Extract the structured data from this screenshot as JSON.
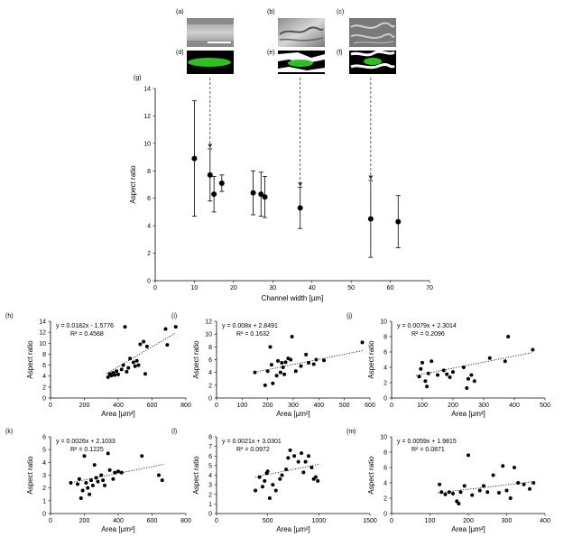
{
  "images": {
    "labels": [
      "(a)",
      "(b)",
      "(c)",
      "(d)",
      "(e)",
      "(f)"
    ]
  },
  "chart_data": [
    {
      "id": "g",
      "type": "scatter",
      "panel_label": "(g)",
      "title": "",
      "xlabel": "Channel width [µm]",
      "ylabel": "Aspect ratio",
      "xlim": [
        0,
        70
      ],
      "ylim": [
        0,
        14
      ],
      "xticks": [
        "0",
        "10",
        "20",
        "30",
        "40",
        "50",
        "60",
        "70"
      ],
      "yticks": [
        "0",
        "2",
        "4",
        "6",
        "8",
        "10",
        "12",
        "14"
      ],
      "points": [
        {
          "x": 10,
          "y": 8.9,
          "err": 4.2
        },
        {
          "x": 14,
          "y": 7.7,
          "err": 1.9
        },
        {
          "x": 15,
          "y": 6.3,
          "err": 1.3
        },
        {
          "x": 17,
          "y": 7.1,
          "err": 0.6
        },
        {
          "x": 25,
          "y": 6.4,
          "err": 1.6
        },
        {
          "x": 27,
          "y": 6.3,
          "err": 1.6
        },
        {
          "x": 28,
          "y": 6.1,
          "err": 1.5
        },
        {
          "x": 37,
          "y": 5.3,
          "err": 1.5
        },
        {
          "x": 55,
          "y": 4.5,
          "err": 2.8
        },
        {
          "x": 62,
          "y": 4.3,
          "err": 1.9
        }
      ],
      "arrows_x": [
        14,
        37,
        55
      ]
    },
    {
      "id": "h",
      "type": "scatter",
      "panel_label": "(h)",
      "xlabel": "Area [µm²]",
      "ylabel": "Aspect ratio",
      "xlim": [
        0,
        800
      ],
      "ylim": [
        0,
        14
      ],
      "xticks": [
        "0",
        "200",
        "400",
        "600",
        "800"
      ],
      "yticks": [
        "0",
        "2",
        "4",
        "6",
        "8",
        "10",
        "12",
        "14"
      ],
      "equation": "y = 0.0182x - 1.5776",
      "r2": "R² = 0.4568",
      "trend": {
        "slope": 0.0182,
        "intercept": -1.5776,
        "x0": 330,
        "x1": 740
      },
      "points": [
        [
          340,
          3.8
        ],
        [
          350,
          4.4
        ],
        [
          360,
          4.1
        ],
        [
          370,
          4.6
        ],
        [
          380,
          4.2
        ],
        [
          390,
          4.9
        ],
        [
          400,
          4.3
        ],
        [
          420,
          5.2
        ],
        [
          430,
          6.0
        ],
        [
          440,
          13.0
        ],
        [
          450,
          4.8
        ],
        [
          460,
          5.5
        ],
        [
          470,
          7.2
        ],
        [
          490,
          6.5
        ],
        [
          500,
          5.8
        ],
        [
          510,
          6.8
        ],
        [
          520,
          6.0
        ],
        [
          530,
          9.8
        ],
        [
          550,
          10.3
        ],
        [
          560,
          4.4
        ],
        [
          570,
          9.4
        ],
        [
          680,
          12.6
        ],
        [
          690,
          9.7
        ],
        [
          740,
          13.0
        ]
      ]
    },
    {
      "id": "i",
      "type": "scatter",
      "panel_label": "(i)",
      "xlabel": "Area [µm²]",
      "ylabel": "Aspect ratio",
      "xlim": [
        0,
        600
      ],
      "ylim": [
        0,
        12
      ],
      "xticks": [
        "0",
        "100",
        "200",
        "300",
        "400",
        "500",
        "600"
      ],
      "yticks": [
        "0",
        "2",
        "4",
        "6",
        "8",
        "10",
        "12"
      ],
      "equation": "y = 0.008x + 2.8491",
      "r2": "R² = 0.1632",
      "trend": {
        "slope": 0.008,
        "intercept": 2.8491,
        "x0": 150,
        "x1": 575
      },
      "points": [
        [
          150,
          4.0
        ],
        [
          190,
          2.0
        ],
        [
          200,
          4.2
        ],
        [
          210,
          8.0
        ],
        [
          215,
          5.2
        ],
        [
          220,
          2.3
        ],
        [
          235,
          3.5
        ],
        [
          240,
          5.8
        ],
        [
          250,
          4.0
        ],
        [
          255,
          5.5
        ],
        [
          260,
          4.8
        ],
        [
          265,
          3.7
        ],
        [
          270,
          5.6
        ],
        [
          280,
          6.2
        ],
        [
          290,
          6.0
        ],
        [
          295,
          9.6
        ],
        [
          310,
          4.2
        ],
        [
          330,
          5.0
        ],
        [
          350,
          6.8
        ],
        [
          360,
          5.5
        ],
        [
          380,
          5.3
        ],
        [
          390,
          6.0
        ],
        [
          420,
          5.9
        ],
        [
          570,
          8.7
        ]
      ]
    },
    {
      "id": "j",
      "type": "scatter",
      "panel_label": "(j)",
      "xlabel": "Area [µm²]",
      "ylabel": "Aspect ratio",
      "xlim": [
        0,
        500
      ],
      "ylim": [
        0,
        10
      ],
      "xticks": [
        "0",
        "100",
        "200",
        "300",
        "400",
        "500"
      ],
      "yticks": [
        "0",
        "2",
        "4",
        "6",
        "8",
        "10"
      ],
      "equation": "y = 0.0079x + 2.3014",
      "r2": "R² = 0.2096",
      "trend": {
        "slope": 0.0079,
        "intercept": 2.3014,
        "x0": 80,
        "x1": 460
      },
      "points": [
        [
          90,
          2.8
        ],
        [
          95,
          3.8
        ],
        [
          100,
          4.6
        ],
        [
          110,
          2.2
        ],
        [
          115,
          1.5
        ],
        [
          120,
          3.2
        ],
        [
          130,
          4.8
        ],
        [
          150,
          3.0
        ],
        [
          170,
          3.6
        ],
        [
          180,
          3.1
        ],
        [
          190,
          2.7
        ],
        [
          200,
          3.4
        ],
        [
          235,
          4.0
        ],
        [
          245,
          1.3
        ],
        [
          250,
          2.5
        ],
        [
          260,
          3.0
        ],
        [
          270,
          2.2
        ],
        [
          320,
          5.2
        ],
        [
          370,
          4.8
        ],
        [
          380,
          8.0
        ],
        [
          460,
          6.3
        ]
      ]
    },
    {
      "id": "k",
      "type": "scatter",
      "panel_label": "(k)",
      "xlabel": "Area [µm²]",
      "ylabel": "Aspect ratio",
      "xlim": [
        0,
        800
      ],
      "ylim": [
        0,
        6
      ],
      "xticks": [
        "0",
        "200",
        "400",
        "600",
        "800"
      ],
      "yticks": [
        "0",
        "1",
        "2",
        "3",
        "4",
        "5",
        "6"
      ],
      "equation": "y = 0.0026x + 2.1033",
      "r2": "R² = 0.1225",
      "trend": {
        "slope": 0.0026,
        "intercept": 2.1033,
        "x0": 110,
        "x1": 670
      },
      "points": [
        [
          120,
          2.4
        ],
        [
          160,
          2.3
        ],
        [
          170,
          2.7
        ],
        [
          180,
          1.2
        ],
        [
          190,
          1.8
        ],
        [
          200,
          4.5
        ],
        [
          210,
          2.4
        ],
        [
          220,
          2.0
        ],
        [
          230,
          1.5
        ],
        [
          240,
          2.6
        ],
        [
          250,
          2.2
        ],
        [
          260,
          3.8
        ],
        [
          270,
          2.8
        ],
        [
          280,
          2.5
        ],
        [
          300,
          3.0
        ],
        [
          310,
          2.6
        ],
        [
          320,
          2.2
        ],
        [
          340,
          4.7
        ],
        [
          350,
          3.4
        ],
        [
          370,
          2.7
        ],
        [
          380,
          3.2
        ],
        [
          400,
          3.3
        ],
        [
          420,
          3.2
        ],
        [
          540,
          4.5
        ],
        [
          640,
          3.0
        ],
        [
          660,
          2.6
        ]
      ]
    },
    {
      "id": "l",
      "type": "scatter",
      "panel_label": "(l)",
      "xlabel": "Area [µm²]",
      "ylabel": "Aspect ratio",
      "xlim": [
        0,
        1500
      ],
      "ylim": [
        0,
        8
      ],
      "xticks": [
        "0",
        "500",
        "1000",
        "1500"
      ],
      "yticks": [
        "0",
        "1",
        "2",
        "3",
        "4",
        "5",
        "6",
        "7",
        "8"
      ],
      "equation": "y = 0.0021x + 3.0301",
      "r2": "R² = 0.0972",
      "trend": {
        "slope": 0.0021,
        "intercept": 3.0301,
        "x0": 380,
        "x1": 1010
      },
      "points": [
        [
          380,
          2.4
        ],
        [
          420,
          3.8
        ],
        [
          450,
          2.8
        ],
        [
          470,
          3.4
        ],
        [
          490,
          4.2
        ],
        [
          500,
          4.4
        ],
        [
          520,
          1.6
        ],
        [
          550,
          3.0
        ],
        [
          580,
          2.4
        ],
        [
          620,
          3.6
        ],
        [
          640,
          4.0
        ],
        [
          680,
          4.6
        ],
        [
          700,
          5.8
        ],
        [
          720,
          6.6
        ],
        [
          760,
          6.0
        ],
        [
          800,
          5.4
        ],
        [
          830,
          6.3
        ],
        [
          850,
          4.3
        ],
        [
          870,
          5.4
        ],
        [
          900,
          6.0
        ],
        [
          930,
          4.8
        ],
        [
          950,
          3.6
        ],
        [
          970,
          3.8
        ],
        [
          990,
          3.4
        ]
      ]
    },
    {
      "id": "m",
      "type": "scatter",
      "panel_label": "(m)",
      "xlabel": "Area [µm²]",
      "ylabel": "Aspect ratio",
      "xlim": [
        0,
        400
      ],
      "ylim": [
        0,
        10
      ],
      "xticks": [
        "0",
        "100",
        "200",
        "300",
        "400"
      ],
      "yticks": [
        "0",
        "2",
        "4",
        "6",
        "8",
        "10"
      ],
      "equation": "y = 0.0059x + 1.9815",
      "r2": "R² = 0.0871",
      "trend": {
        "slope": 0.0059,
        "intercept": 1.9815,
        "x0": 120,
        "x1": 370
      },
      "points": [
        [
          125,
          3.8
        ],
        [
          130,
          2.8
        ],
        [
          140,
          2.5
        ],
        [
          150,
          2.8
        ],
        [
          160,
          2.6
        ],
        [
          170,
          1.6
        ],
        [
          175,
          1.3
        ],
        [
          180,
          2.8
        ],
        [
          190,
          3.6
        ],
        [
          200,
          7.6
        ],
        [
          210,
          2.4
        ],
        [
          230,
          3.0
        ],
        [
          240,
          3.6
        ],
        [
          250,
          2.8
        ],
        [
          265,
          5.0
        ],
        [
          280,
          2.7
        ],
        [
          290,
          6.2
        ],
        [
          300,
          3.0
        ],
        [
          310,
          2.0
        ],
        [
          320,
          6.0
        ],
        [
          330,
          4.0
        ],
        [
          345,
          3.8
        ],
        [
          360,
          3.2
        ],
        [
          370,
          4.0
        ]
      ]
    }
  ]
}
